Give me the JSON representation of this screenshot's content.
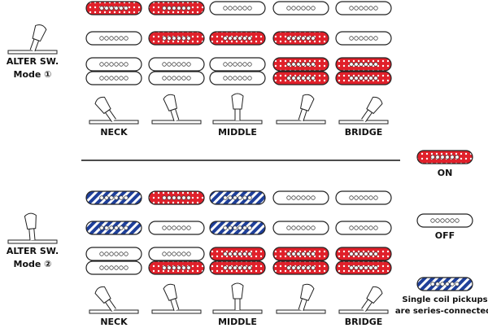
{
  "modes": [
    {
      "switch_label": "ALTER SW.",
      "mode_label": "Mode ①",
      "positions": [
        {
          "label": "NECK",
          "pickups": [
            "on",
            "off",
            "off",
            "off"
          ]
        },
        {
          "pickups": [
            "on",
            "on",
            "off",
            "off"
          ]
        },
        {
          "label": "MIDDLE",
          "pickups": [
            "off",
            "on",
            "off",
            "off"
          ]
        },
        {
          "pickups": [
            "off",
            "on",
            "on",
            "on"
          ]
        },
        {
          "label": "BRIDGE",
          "pickups": [
            "off",
            "off",
            "on",
            "on"
          ]
        }
      ]
    },
    {
      "switch_label": "ALTER SW.",
      "mode_label": "Mode ②",
      "positions": [
        {
          "label": "NECK",
          "pickups": [
            "series",
            "series",
            "off",
            "off"
          ]
        },
        {
          "pickups": [
            "on",
            "off",
            "off",
            "on"
          ]
        },
        {
          "label": "MIDDLE",
          "pickups": [
            "series",
            "series",
            "on",
            "on"
          ]
        },
        {
          "pickups": [
            "off",
            "off",
            "on",
            "on"
          ]
        },
        {
          "label": "BRIDGE",
          "pickups": [
            "off",
            "off",
            "on",
            "on"
          ]
        }
      ]
    }
  ],
  "legend": {
    "on": "ON",
    "off": "OFF",
    "series": [
      "Single coil pickups",
      "are series-connected."
    ]
  }
}
